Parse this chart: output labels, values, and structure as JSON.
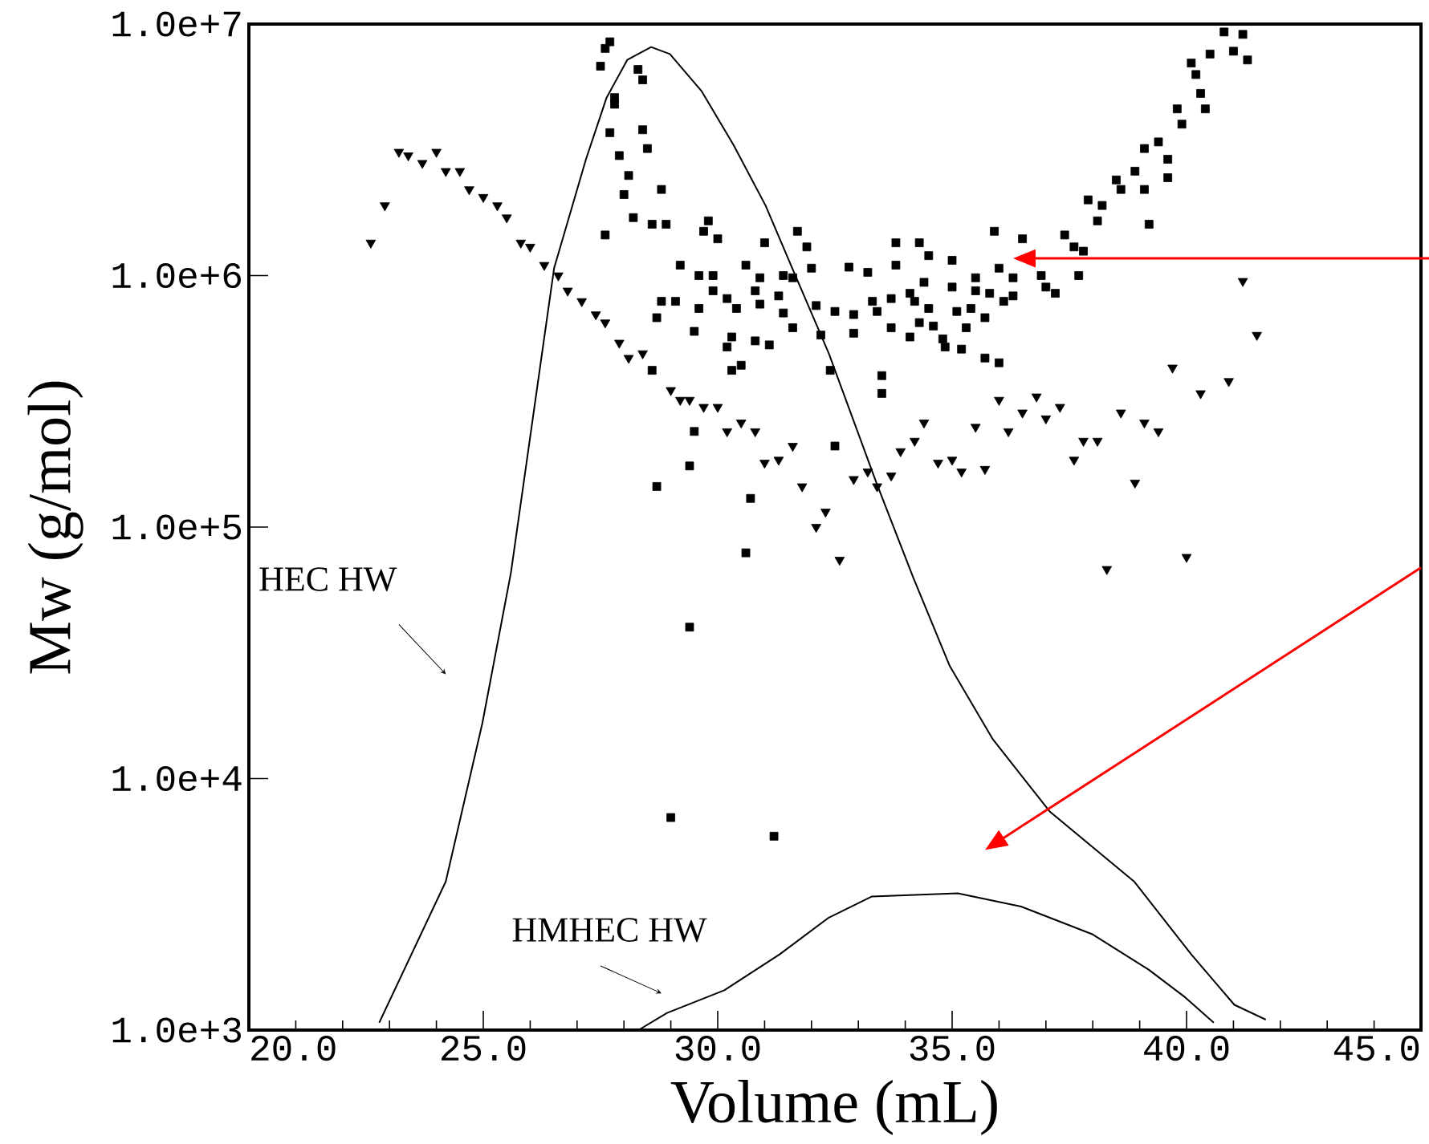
{
  "chart_data": {
    "type": "scatter",
    "xlabel": "Volume (mL)",
    "ylabel": "Mw (g/mol)",
    "log": "y",
    "xlim": [
      20,
      45
    ],
    "ylim": [
      1000,
      10000000
    ],
    "xticks": [
      {
        "value": 20,
        "label": "20.0"
      },
      {
        "value": 25,
        "label": "25.0"
      },
      {
        "value": 30,
        "label": "30.0"
      },
      {
        "value": 35,
        "label": "35.0"
      },
      {
        "value": 40,
        "label": "40.0"
      },
      {
        "value": 45,
        "label": "45.0"
      }
    ],
    "yticks": [
      {
        "value": 1000,
        "label": "1.0e+3"
      },
      {
        "value": 10000,
        "label": "1.0e+4"
      },
      {
        "value": 100000,
        "label": "1.0e+5"
      },
      {
        "value": 1000000,
        "label": "1.0e+6"
      },
      {
        "value": 10000000,
        "label": "1.0e+7"
      }
    ],
    "series": [
      {
        "name": "HEC HW",
        "type": "line",
        "color": "#000000",
        "line_style": "solid",
        "x": [
          22.78,
          24.2,
          24.98,
          25.59,
          26.51,
          27.19,
          27.63,
          28.07,
          28.58,
          28.98,
          29.66,
          30.34,
          31.02,
          31.59,
          32.37,
          33.39,
          34.17,
          34.95,
          35.86,
          37.08,
          38.88,
          40.1,
          41.02,
          41.69
        ],
        "values": [
          1070,
          3900,
          16600,
          66000,
          1070000,
          2900000,
          5100000,
          7200000,
          8100000,
          7600000,
          5400000,
          3300000,
          1900000,
          1070000,
          490000,
          149000,
          63000,
          28000,
          14400,
          7400,
          3900,
          2000,
          1260,
          1100
        ]
      },
      {
        "name": "HMHEC HW",
        "type": "line",
        "color": "#000000",
        "line_style": "solid",
        "x": [
          28.31,
          28.92,
          30.14,
          31.32,
          32.37,
          33.29,
          35.12,
          36.47,
          38.0,
          39.19,
          39.97,
          40.58
        ],
        "values": [
          1000,
          1170,
          1440,
          2000,
          2800,
          3400,
          3500,
          3100,
          2400,
          1740,
          1350,
          1070
        ]
      },
      {
        "color": "#000000",
        "marker": "square",
        "x": [
          27.7,
          27.6,
          27.5,
          28.3,
          28.4,
          27.8,
          27.8,
          27.7,
          28.4,
          28.5,
          27.9,
          28.1,
          28.0,
          28.8,
          28.2,
          28.6,
          28.9,
          27.6,
          29.8,
          29.7,
          30.0,
          31.0,
          31.7,
          31.9,
          29.2,
          29.6,
          29.9,
          30.6,
          30.9,
          31.4,
          31.6,
          32.0,
          32.8,
          33.2,
          28.8,
          29.1,
          28.7,
          29.6,
          29.9,
          30.2,
          30.4,
          30.8,
          31.3,
          30.9,
          31.4,
          32.1,
          32.5,
          32.9,
          29.5,
          30.3,
          30.2,
          30.8,
          31.1,
          31.6,
          32.2,
          32.9,
          30.3,
          30.5,
          28.6,
          32.4,
          29.5,
          29.4,
          28.7,
          30.7,
          32.5,
          30.6,
          29.4,
          29.0,
          31.2,
          40.8,
          41.2,
          41.0,
          41.3,
          40.5,
          40.1,
          40.2,
          40.3,
          40.4,
          39.8,
          39.9,
          39.4,
          39.6,
          39.1,
          38.9,
          39.6,
          38.5,
          38.6,
          39.1,
          37.9,
          38.2,
          38.1,
          39.2,
          35.9,
          36.5,
          37.4,
          37.6,
          37.8,
          33.8,
          34.3,
          34.5,
          35.0,
          33.8,
          36.0,
          36.3,
          36.9,
          37.7,
          35.5,
          34.4,
          35.0,
          35.5,
          35.8,
          37.0,
          37.2,
          36.3,
          36.1,
          33.3,
          33.7,
          34.1,
          34.2,
          33.4,
          34.5,
          35.1,
          35.4,
          35.7,
          34.3,
          34.6,
          35.3,
          33.7,
          34.1,
          34.8,
          34.85,
          35.2,
          35.7,
          36.0,
          33.5,
          33.5
        ],
        "values": [
          8500000,
          8000000,
          6800000,
          6600000,
          6000000,
          5100000,
          4800000,
          3700000,
          3800000,
          3200000,
          3000000,
          2500000,
          2100000,
          2200000,
          1700000,
          1600000,
          1600000,
          1450000,
          1650000,
          1500000,
          1400000,
          1350000,
          1500000,
          1300000,
          1100000,
          1000000,
          1000000,
          1100000,
          980000,
          1000000,
          980000,
          1070000,
          1080000,
          1030000,
          790000,
          790000,
          680000,
          740000,
          870000,
          810000,
          740000,
          870000,
          830000,
          770000,
          710000,
          760000,
          720000,
          700000,
          600000,
          570000,
          520000,
          550000,
          530000,
          620000,
          580000,
          590000,
          420000,
          440000,
          420000,
          420000,
          240000,
          175000,
          145000,
          130000,
          210000,
          79000,
          40000,
          7000,
          5900,
          9300000,
          9100000,
          7800000,
          7200000,
          7600000,
          7000000,
          6300000,
          5300000,
          4600000,
          4600000,
          4000000,
          3400000,
          2900000,
          3200000,
          2600000,
          2450000,
          2400000,
          2200000,
          2200000,
          2000000,
          1900000,
          1650000,
          1600000,
          1500000,
          1400000,
          1450000,
          1300000,
          1250000,
          1350000,
          1350000,
          1200000,
          1150000,
          1100000,
          1070000,
          980000,
          1000000,
          1000000,
          980000,
          940000,
          900000,
          870000,
          850000,
          900000,
          850000,
          830000,
          790000,
          790000,
          810000,
          850000,
          790000,
          720000,
          740000,
          720000,
          740000,
          680000,
          650000,
          630000,
          620000,
          620000,
          570000,
          560000,
          520000,
          510000,
          470000,
          450000,
          400000,
          340000
        ]
      },
      {
        "color": "#000000",
        "marker": "triangle",
        "x": [
          22.6,
          22.9,
          23.2,
          23.4,
          23.7,
          24.0,
          24.2,
          24.5,
          24.7,
          25.0,
          25.3,
          25.5,
          25.8,
          26.0,
          26.3,
          26.6,
          26.8,
          27.1,
          27.4,
          27.6,
          27.9,
          28.1,
          28.4,
          29.0,
          29.2,
          29.4,
          29.7,
          30.0,
          30.2,
          30.5,
          30.8,
          31.0,
          31.3,
          31.6,
          31.8,
          32.1,
          32.3,
          32.9,
          33.2,
          32.6,
          33.4,
          33.7,
          33.9,
          34.2,
          34.4,
          34.7,
          35.0,
          35.2,
          35.7,
          35.5,
          36.0,
          36.2,
          36.5,
          36.8,
          37.0,
          37.3,
          37.6,
          37.8,
          38.1,
          38.3,
          38.6,
          38.9,
          39.1,
          39.4,
          39.7,
          40.0,
          40.3,
          40.9,
          41.2,
          41.5
        ],
        "values": [
          1350000,
          1900000,
          3100000,
          3000000,
          2800000,
          3100000,
          2600000,
          2600000,
          2200000,
          2050000,
          1900000,
          1700000,
          1350000,
          1300000,
          1100000,
          1000000,
          870000,
          790000,
          700000,
          650000,
          540000,
          470000,
          490000,
          350000,
          320000,
          320000,
          300000,
          300000,
          240000,
          260000,
          240000,
          180000,
          185000,
          210000,
          145000,
          100000,
          115000,
          155000,
          166000,
          74000,
          145000,
          160000,
          200000,
          220000,
          260000,
          180000,
          185000,
          166000,
          170000,
          250000,
          320000,
          240000,
          285000,
          330000,
          270000,
          300000,
          185000,
          220000,
          220000,
          68000,
          285000,
          150000,
          260000,
          240000,
          430000,
          76000,
          340000,
          380000,
          950000,
          580000
        ]
      }
    ]
  }
}
